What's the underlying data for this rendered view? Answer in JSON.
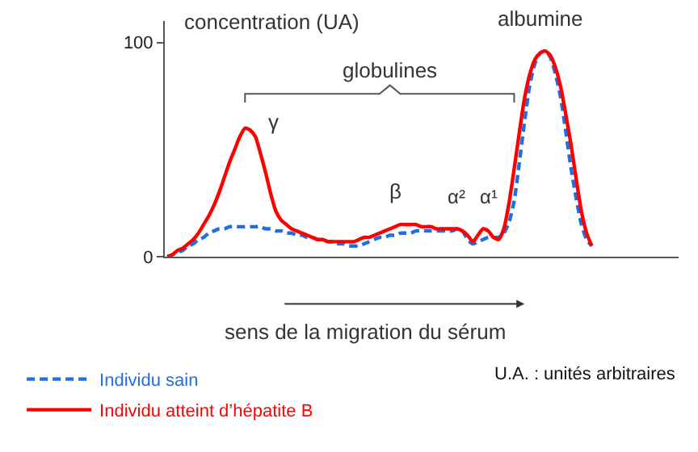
{
  "chart_data": {
    "type": "line",
    "categories": [
      null,
      null,
      null,
      null,
      null,
      null,
      null,
      null,
      null,
      null,
      null,
      null,
      null,
      null,
      null,
      null,
      null,
      null,
      null,
      null,
      null,
      null,
      null,
      null,
      null,
      null,
      null,
      null,
      null,
      null,
      null,
      null,
      null,
      null,
      null,
      null,
      null,
      null,
      null,
      null,
      null,
      null,
      null,
      null,
      null,
      null,
      null,
      null,
      null,
      null,
      null,
      null,
      null,
      null,
      null,
      null,
      null,
      null,
      null,
      null,
      null,
      null,
      null,
      null,
      null,
      null,
      null,
      null,
      null,
      null,
      null,
      null,
      null,
      null,
      null,
      null,
      null,
      null,
      null,
      null,
      null,
      null,
      null
    ],
    "xlabel": "sens de la migration du sérum",
    "ylabel": "concentration (UA)",
    "ylim": [
      0,
      110
    ],
    "yticks": [
      0,
      100
    ],
    "tick_labels": "y",
    "legend": "bottom left",
    "marker": "none",
    "series": [
      {
        "name": "Individu sain",
        "color": "#1f6fe0",
        "line_style": "dashed",
        "values": [
          0,
          1,
          2,
          3,
          5,
          6,
          8,
          9,
          11,
          12,
          13,
          13,
          14,
          14,
          14,
          14,
          14,
          14,
          14,
          13,
          13,
          12,
          12,
          11,
          11,
          10,
          10,
          9,
          9,
          8,
          8,
          7,
          7,
          6,
          6,
          5,
          5,
          5,
          6,
          7,
          8,
          9,
          9,
          10,
          10,
          11,
          11,
          11,
          12,
          12,
          12,
          12,
          12,
          12,
          12,
          12,
          13,
          12,
          8,
          6,
          7,
          8,
          9,
          9,
          9,
          11,
          16,
          26,
          44,
          63,
          80,
          90,
          95,
          96,
          93,
          85,
          74,
          58,
          41,
          27,
          15,
          8,
          5
        ]
      },
      {
        "name": "Individu atteint d’hépatite B",
        "color": "#ff0000",
        "line_style": "solid",
        "values": [
          0,
          1,
          3,
          4,
          6,
          8,
          11,
          15,
          19,
          24,
          30,
          37,
          44,
          50,
          56,
          60,
          59,
          56,
          48,
          39,
          29,
          21,
          17,
          15,
          13,
          12,
          11,
          10,
          9,
          8,
          8,
          7,
          7,
          7,
          7,
          7,
          7,
          8,
          9,
          9,
          10,
          11,
          12,
          13,
          14,
          15,
          15,
          15,
          15,
          14,
          14,
          14,
          13,
          13,
          13,
          13,
          13,
          12,
          10,
          7,
          10,
          13,
          12,
          9,
          8,
          13,
          25,
          41,
          58,
          74,
          85,
          92,
          95,
          96,
          94,
          88,
          79,
          66,
          52,
          36,
          21,
          11,
          5
        ]
      }
    ],
    "annotations": [
      "globulines",
      "γ",
      "β",
      "α²",
      "α¹",
      "albumine",
      "U.A. : unités arbitraires"
    ]
  }
}
